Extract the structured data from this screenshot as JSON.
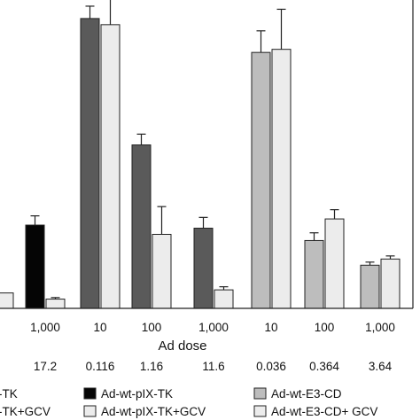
{
  "chart_data": {
    "type": "bar",
    "ylim": [
      0,
      100
    ],
    "xlabel": "Ad dose",
    "categories": [
      "",
      "1,000",
      "10",
      "100",
      "1,000",
      "10",
      "100",
      "1,000"
    ],
    "second_row": [
      "",
      "17.2",
      "0.116",
      "1.16",
      "11.6",
      "0.036",
      "0.364",
      "3.64"
    ],
    "groups": [
      {
        "bars": [
          {
            "value": 5,
            "err": 0,
            "style": "light"
          }
        ]
      },
      {
        "bars": [
          {
            "value": 27,
            "err": 3,
            "style": "black"
          },
          {
            "value": 3,
            "err": 0.5,
            "style": "light"
          }
        ]
      },
      {
        "bars": [
          {
            "value": 94,
            "err": 4,
            "style": "dark"
          },
          {
            "value": 92,
            "err": 13,
            "style": "light"
          }
        ]
      },
      {
        "bars": [
          {
            "value": 53,
            "err": 3.5,
            "style": "dark"
          },
          {
            "value": 24,
            "err": 9,
            "style": "light"
          }
        ]
      },
      {
        "bars": [
          {
            "value": 26,
            "err": 3.5,
            "style": "dark"
          },
          {
            "value": 6,
            "err": 1,
            "style": "light"
          }
        ]
      },
      {
        "bars": [
          {
            "value": 83,
            "err": 7,
            "style": "mid"
          },
          {
            "value": 84,
            "err": 13,
            "style": "light"
          }
        ]
      },
      {
        "bars": [
          {
            "value": 22,
            "err": 2.5,
            "style": "mid"
          },
          {
            "value": 29,
            "err": 3,
            "style": "light"
          }
        ]
      },
      {
        "bars": [
          {
            "value": 14,
            "err": 1,
            "style": "mid"
          },
          {
            "value": 16,
            "err": 1,
            "style": "light"
          }
        ]
      }
    ],
    "legend": [
      {
        "label": "-TK",
        "style": "none"
      },
      {
        "label": "-TK+GCV",
        "style": "none"
      },
      {
        "label": "Ad-wt-pIX-TK",
        "style": "black"
      },
      {
        "label": "Ad-wt-pIX-TK+GCV",
        "style": "light"
      },
      {
        "label": "Ad-wt-E3-CD",
        "style": "mid"
      },
      {
        "label": "Ad-wt-E3-CD+ GCV",
        "style": "light"
      }
    ],
    "colors": {
      "black": "#050505",
      "dark": "#5a5a5a",
      "mid": "#bdbdbd",
      "light": "#ececec",
      "stroke": "#222222"
    }
  }
}
